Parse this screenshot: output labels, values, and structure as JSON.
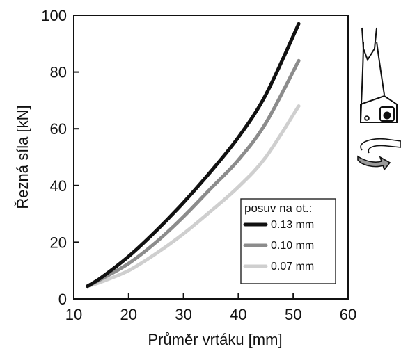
{
  "chart_data": {
    "type": "line",
    "xlabel": "Průměr vrtáku [mm]",
    "ylabel": "Řezná síla [kN]",
    "xlim": [
      10,
      60
    ],
    "ylim": [
      0,
      100
    ],
    "xticks": [
      10,
      20,
      30,
      40,
      50,
      60
    ],
    "yticks": [
      0,
      20,
      40,
      60,
      80,
      100
    ],
    "grid": false,
    "legend": {
      "title": "posuv na ot.:",
      "placement": "bottom-right"
    },
    "series": [
      {
        "name": "0.13 mm",
        "color": "#111111",
        "x": [
          12.5,
          15,
          20,
          25,
          30,
          35,
          40,
          45,
          51
        ],
        "y": [
          4.5,
          7.5,
          15,
          24,
          34,
          45,
          57,
          72,
          97
        ]
      },
      {
        "name": "0.10 mm",
        "color": "#8c8c8c",
        "x": [
          12.5,
          15,
          20,
          25,
          30,
          35,
          40,
          45,
          51
        ],
        "y": [
          4.5,
          7,
          12.5,
          20,
          29,
          39,
          49,
          62,
          84
        ]
      },
      {
        "name": "0.07 mm",
        "color": "#cfcfcf",
        "x": [
          12.5,
          15,
          20,
          25,
          30,
          35,
          40,
          45,
          51
        ],
        "y": [
          4.5,
          6,
          10,
          16,
          23,
          31,
          39.5,
          50,
          68
        ]
      }
    ]
  },
  "icons": {
    "drill": "drill-bit-icon",
    "rotation": "rotation-arrow-icon"
  }
}
